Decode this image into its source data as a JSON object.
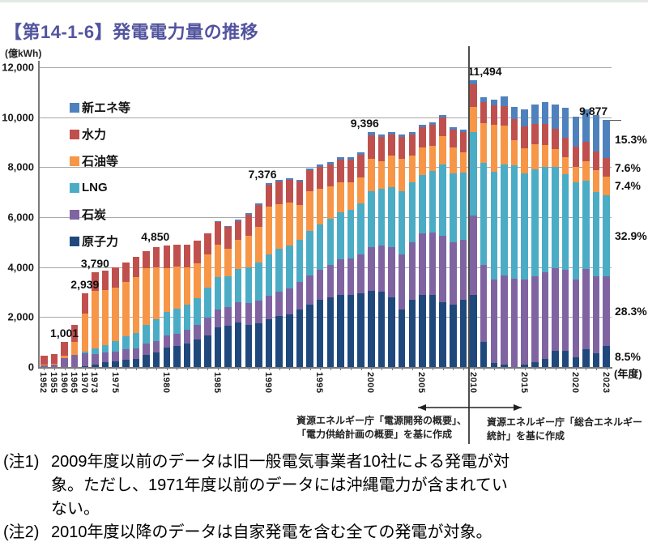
{
  "page": {
    "title": "【第14-1-6】発電電力量の推移",
    "unit_label": "(億kWh)",
    "x_axis_unit": "(年度)"
  },
  "legend": {
    "items": [
      {
        "label": "新エネ等",
        "color": "#4F81BD"
      },
      {
        "label": "水力",
        "color": "#C0504D"
      },
      {
        "label": "石油等",
        "color": "#F79646"
      },
      {
        "label": "LNG",
        "color": "#4BACC6"
      },
      {
        "label": "石炭",
        "color": "#8064A2"
      },
      {
        "label": "原子力",
        "color": "#1F497D"
      }
    ]
  },
  "chart_data": {
    "type": "bar",
    "stacked": true,
    "title": "発電電力量の推移",
    "ylabel": "(億kWh)",
    "xlabel": "(年度)",
    "ylim": [
      0,
      12000
    ],
    "y_ticks": [
      "0",
      "2,000",
      "4,000",
      "6,000",
      "8,000",
      "10,000",
      "12,000"
    ],
    "y_tick_values": [
      0,
      2000,
      4000,
      6000,
      8000,
      10000,
      12000
    ],
    "grid": true,
    "legend_position": "upper-left-inside",
    "categories": [
      1952,
      1955,
      1960,
      1965,
      1970,
      1973,
      1974,
      1975,
      1976,
      1977,
      1978,
      1979,
      1980,
      1981,
      1982,
      1983,
      1984,
      1985,
      1986,
      1987,
      1988,
      1989,
      1990,
      1991,
      1992,
      1993,
      1994,
      1995,
      1996,
      1997,
      1998,
      1999,
      2000,
      2001,
      2002,
      2003,
      2004,
      2005,
      2006,
      2007,
      2008,
      2009,
      2010,
      2011,
      2012,
      2013,
      2014,
      2015,
      2016,
      2017,
      2018,
      2019,
      2020,
      2021,
      2022,
      2023
    ],
    "x_tick_labels": [
      "1952",
      "1955",
      "1960",
      "1965",
      "1970",
      "1973",
      "1975",
      "1980",
      "1985",
      "1990",
      "1995",
      "2000",
      "2005",
      "2010",
      "2015",
      "2020",
      "2023"
    ],
    "series": [
      {
        "name": "原子力",
        "color": "#1F497D",
        "values": [
          0,
          0,
          0,
          0,
          40,
          90,
          180,
          230,
          300,
          330,
          500,
          600,
          780,
          830,
          950,
          1100,
          1270,
          1590,
          1640,
          1780,
          1700,
          1750,
          1920,
          2030,
          2100,
          2300,
          2500,
          2700,
          2780,
          2900,
          2900,
          2950,
          3050,
          3030,
          2800,
          2300,
          2700,
          2900,
          2900,
          2600,
          2500,
          2700,
          2882,
          1018,
          159,
          93,
          0,
          94,
          181,
          329,
          649,
          638,
          388,
          708,
          561,
          840
        ]
      },
      {
        "name": "石炭",
        "color": "#8064A2",
        "values": [
          80,
          110,
          350,
          500,
          500,
          440,
          400,
          400,
          420,
          430,
          430,
          450,
          470,
          500,
          550,
          600,
          700,
          720,
          750,
          800,
          850,
          900,
          950,
          1000,
          1050,
          1100,
          1150,
          1200,
          1300,
          1400,
          1450,
          1550,
          1750,
          1850,
          2000,
          2200,
          2300,
          2450,
          2500,
          2650,
          2500,
          2400,
          3199,
          3058,
          3340,
          3571,
          3537,
          3400,
          3452,
          3472,
          3324,
          3264,
          3102,
          3202,
          3068,
          2795
        ]
      },
      {
        "name": "LNG",
        "color": "#4BACC6",
        "values": [
          0,
          0,
          0,
          0,
          90,
          230,
          300,
          400,
          500,
          600,
          750,
          850,
          970,
          1000,
          1000,
          1050,
          1200,
          1290,
          1250,
          1350,
          1450,
          1550,
          1650,
          1700,
          1700,
          1700,
          1800,
          1800,
          1850,
          1900,
          1950,
          2050,
          2250,
          2250,
          2400,
          2550,
          2400,
          2350,
          2450,
          2850,
          2750,
          2700,
          3339,
          4113,
          4320,
          4435,
          4552,
          4257,
          4272,
          4213,
          4029,
          3813,
          3899,
          3558,
          3389,
          3250
        ]
      },
      {
        "name": "石油等",
        "color": "#F79646",
        "values": [
          15,
          20,
          90,
          500,
          1500,
          2280,
          2200,
          2150,
          2180,
          2240,
          2270,
          2100,
          1750,
          1700,
          1500,
          1400,
          1350,
          1300,
          1100,
          1150,
          1250,
          1400,
          1900,
          1800,
          1750,
          1400,
          1600,
          1450,
          1300,
          1200,
          1100,
          1050,
          1300,
          1100,
          1250,
          1300,
          1050,
          1100,
          1000,
          1150,
          1050,
          800,
          983,
          1583,
          1885,
          1567,
          1000,
          1023,
          1018,
          889,
          734,
          684,
          636,
          767,
          853,
          731
        ]
      },
      {
        "name": "水力",
        "color": "#C0504D",
        "values": [
          355,
          400,
          561,
          700,
          809,
          750,
          770,
          820,
          800,
          800,
          700,
          800,
          880,
          870,
          900,
          900,
          830,
          900,
          860,
          770,
          850,
          900,
          890,
          900,
          880,
          930,
          820,
          870,
          880,
          910,
          900,
          900,
          940,
          970,
          850,
          850,
          850,
          800,
          850,
          750,
          700,
          800,
          907,
          849,
          765,
          794,
          835,
          871,
          795,
          838,
          810,
          796,
          784,
          776,
          766,
          751
        ]
      },
      {
        "name": "新エネ等",
        "color": "#4F81BD",
        "values": [
          0,
          0,
          0,
          0,
          0,
          0,
          0,
          0,
          0,
          0,
          0,
          0,
          0,
          0,
          0,
          0,
          0,
          40,
          40,
          40,
          50,
          60,
          66,
          70,
          70,
          70,
          80,
          80,
          90,
          90,
          100,
          100,
          106,
          100,
          100,
          100,
          100,
          100,
          100,
          100,
          100,
          100,
          184,
          179,
          250,
          388,
          502,
          659,
          792,
          863,
          958,
          1175,
          1204,
          1316,
          1445,
          1511
        ]
      }
    ],
    "annotations": [
      {
        "year": 1960,
        "label": "1,001"
      },
      {
        "year": 1970,
        "label": "2,939"
      },
      {
        "year": 1973,
        "label": "3,790"
      },
      {
        "year": 1980,
        "label": "4,850",
        "dx": -14
      },
      {
        "year": 1990,
        "label": "7,376",
        "dx": -8
      },
      {
        "year": 2000,
        "label": "9,396",
        "dx": -8
      },
      {
        "year": 2010,
        "label": "11,494",
        "dx": 14
      },
      {
        "year": 2023,
        "label": "9,877",
        "dx": -16
      }
    ],
    "share_labels_2023": [
      {
        "series": "原子力",
        "label": "8.5%"
      },
      {
        "series": "石炭",
        "label": "28.3%"
      },
      {
        "series": "LNG",
        "label": "32.9%"
      },
      {
        "series": "石油等",
        "label": "7.4%"
      },
      {
        "series": "水力",
        "label": "7.6%"
      },
      {
        "series": "新エネ等",
        "label": "15.3%"
      }
    ],
    "divider_between_years": [
      2009,
      2010
    ]
  },
  "sources": {
    "left": "資源エネルギー庁「電源開発の概要」、\n「電力供給計画の概要」を基に作成",
    "right": "資源エネルギー庁「総合エネルギー\n統計」を基に作成"
  },
  "notes": {
    "note1": {
      "label": "(注1)",
      "lines": [
        "2009年度以前のデータは旧一般電気事業者10社による発電が対",
        "象。ただし、1971年度以前のデータには沖縄電力が含まれてい",
        "ない。"
      ]
    },
    "note2": {
      "label": "(注2)",
      "line": "2010年度以降のデータは自家発電を含む全ての発電が対象。"
    }
  }
}
